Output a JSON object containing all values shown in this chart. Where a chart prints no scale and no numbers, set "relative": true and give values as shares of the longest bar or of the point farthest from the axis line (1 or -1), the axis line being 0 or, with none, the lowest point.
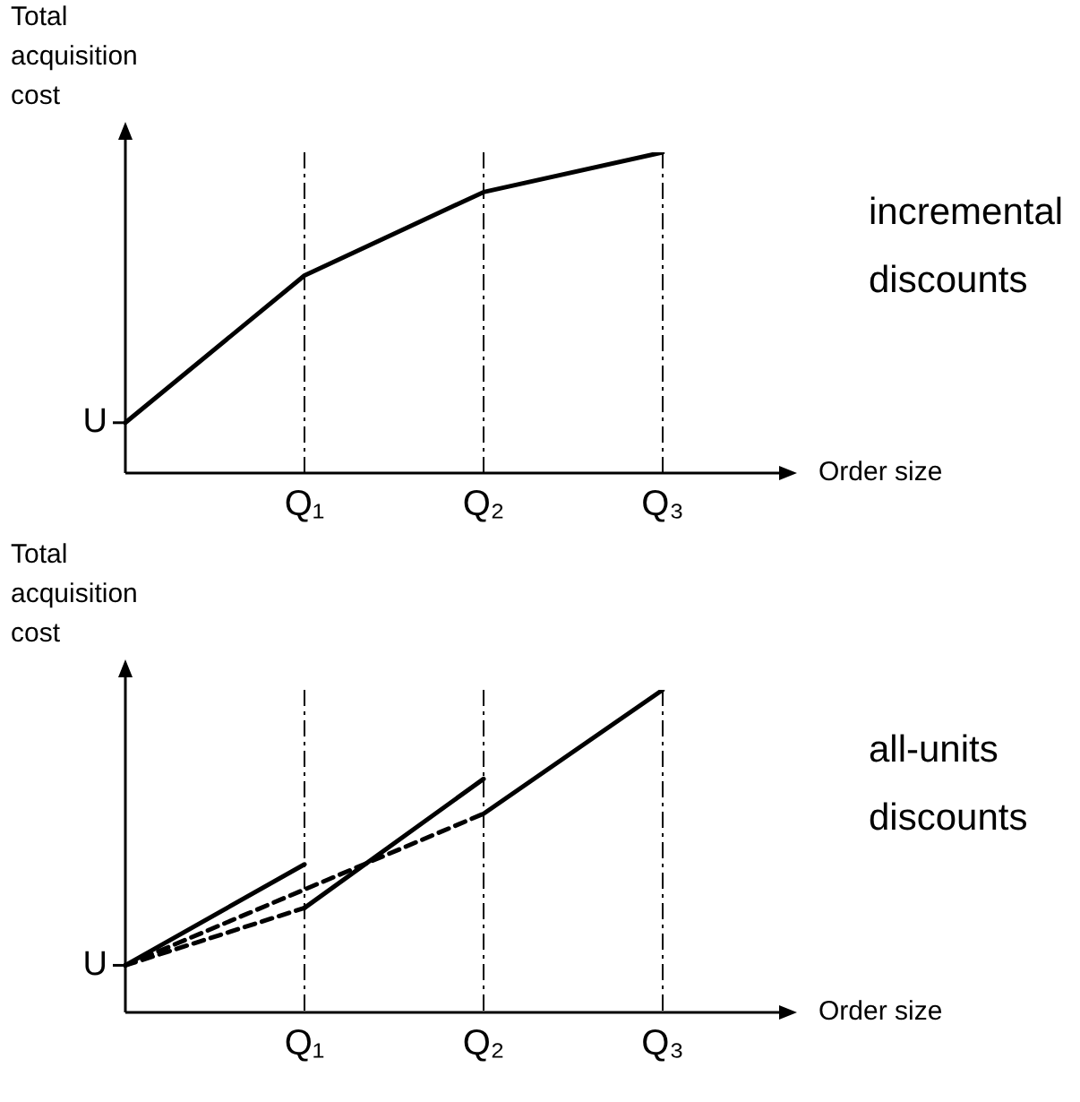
{
  "chart_data": [
    {
      "type": "line",
      "relative": true,
      "ylabel": "Total acquisition cost",
      "xlabel": "Order size",
      "categories": [
        null,
        "Q₁",
        "Q₂",
        "Q₃"
      ],
      "grid": "x",
      "marker": "none",
      "line_style": "solid",
      "series": [
        {
          "color": "#000000",
          "values": [
            0.157,
            0.616,
            0.876,
            1
          ]
        }
      ],
      "annotations": [
        "incremental discounts",
        "U"
      ]
    },
    {
      "type": "line",
      "relative": true,
      "ylabel": "Total acquisition cost",
      "xlabel": "Order size",
      "categories": [
        null,
        "Q₁",
        "Q₂",
        "Q₃"
      ],
      "grid": "x",
      "marker": "none",
      "line_style": "solid",
      "series": [
        {
          "color": "#000000",
          "values": [
            0.146,
            0.459,
            null,
            null
          ]
        },
        {
          "color": "#000000",
          "values": [
            null,
            0.324,
            0.724,
            null
          ]
        },
        {
          "color": "#000000",
          "values": [
            null,
            null,
            0.616,
            1
          ]
        },
        {
          "color": "#000000",
          "line_style": "dashed",
          "values": [
            0.146,
            0.324,
            null,
            null
          ]
        },
        {
          "color": "#000000",
          "line_style": "dashed",
          "values": [
            0.146,
            null,
            0.616,
            null
          ]
        }
      ],
      "annotations": [
        "all-units discounts",
        "U"
      ]
    }
  ]
}
